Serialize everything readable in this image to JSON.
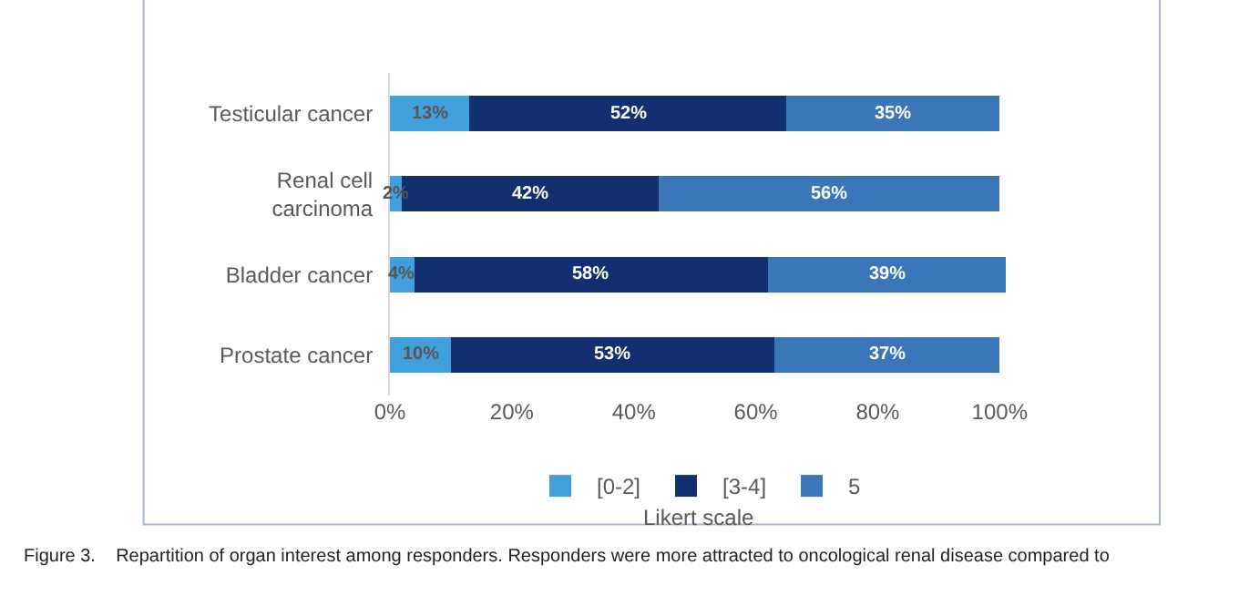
{
  "chart_data": {
    "type": "bar",
    "orientation": "horizontal",
    "stacked": true,
    "categories": [
      "Testicular cancer",
      "Renal cell carcinoma",
      "Bladder cancer",
      "Prostate cancer"
    ],
    "series": [
      {
        "name": "[0-2]",
        "color": "#41a0dc",
        "values": [
          13,
          2,
          4,
          10
        ],
        "value_labels": [
          "13%",
          "2%",
          "4%",
          "10%"
        ]
      },
      {
        "name": "[3-4]",
        "color": "#12306f",
        "values": [
          52,
          42,
          58,
          53
        ],
        "value_labels": [
          "52%",
          "42%",
          "58%",
          "53%"
        ]
      },
      {
        "name": "5",
        "color": "#3a76b8",
        "values": [
          35,
          56,
          39,
          37
        ],
        "value_labels": [
          "35%",
          "56%",
          "39%",
          "37%"
        ]
      }
    ],
    "xlim": [
      0,
      101
    ],
    "xticks": [
      {
        "value": 0,
        "label": "0%"
      },
      {
        "value": 20,
        "label": "20%"
      },
      {
        "value": 40,
        "label": "40%"
      },
      {
        "value": 60,
        "label": "60%"
      },
      {
        "value": 80,
        "label": "80%"
      },
      {
        "value": 100,
        "label": "100%"
      }
    ],
    "grid": false,
    "legend": "bottom",
    "legend_title": "Likert scale",
    "annotations": [
      "Figure 3.    Repartition of organ interest among responders. Responders were more attracted to oncological renal disease compared to"
    ]
  }
}
